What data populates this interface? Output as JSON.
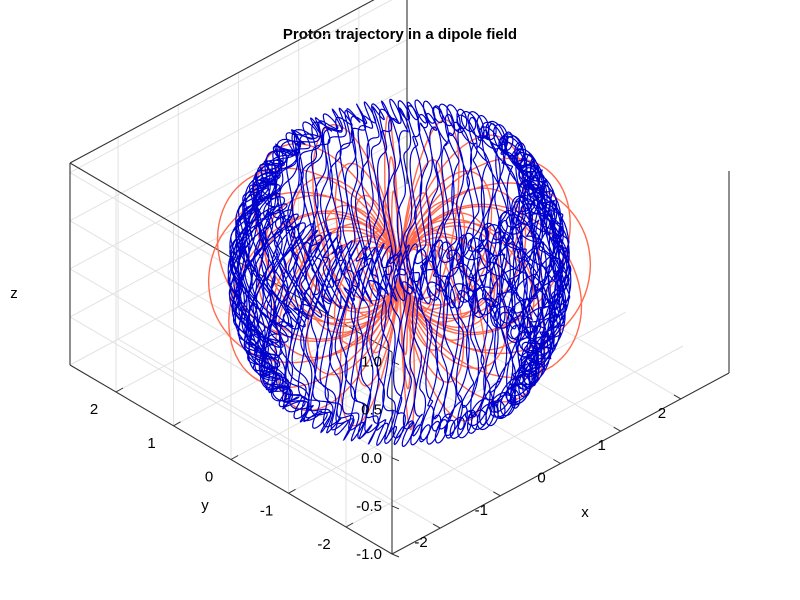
{
  "chart_data": {
    "type": "line",
    "title": "Proton trajectory in a dipole field",
    "xlabel": "x",
    "ylabel": "y",
    "zlabel": "z",
    "xlim": [
      -2.8,
      2.8
    ],
    "ylim": [
      -2.8,
      2.8
    ],
    "zlim": [
      -1,
      1.1
    ],
    "x_ticks": [
      "-2",
      "-1",
      "0",
      "1",
      "2"
    ],
    "y_ticks": [
      "-2",
      "-1",
      "0",
      "1",
      "2"
    ],
    "z_ticks": [
      "-1.0",
      "-0.5",
      "0.0",
      "0.5",
      "1.0"
    ],
    "grid": true,
    "series": [
      {
        "role": "dipole field lines",
        "color": "#ff6b4f",
        "L_shells": [
          1.2,
          1.7,
          2.3
        ],
        "num_longitudes": 16
      },
      {
        "role": "proton trajectory",
        "color": "#0000cc",
        "guiding_radius": 2.0,
        "bounce_amplitude": 0.95,
        "bounces": 96,
        "gyrations": 700
      }
    ]
  }
}
